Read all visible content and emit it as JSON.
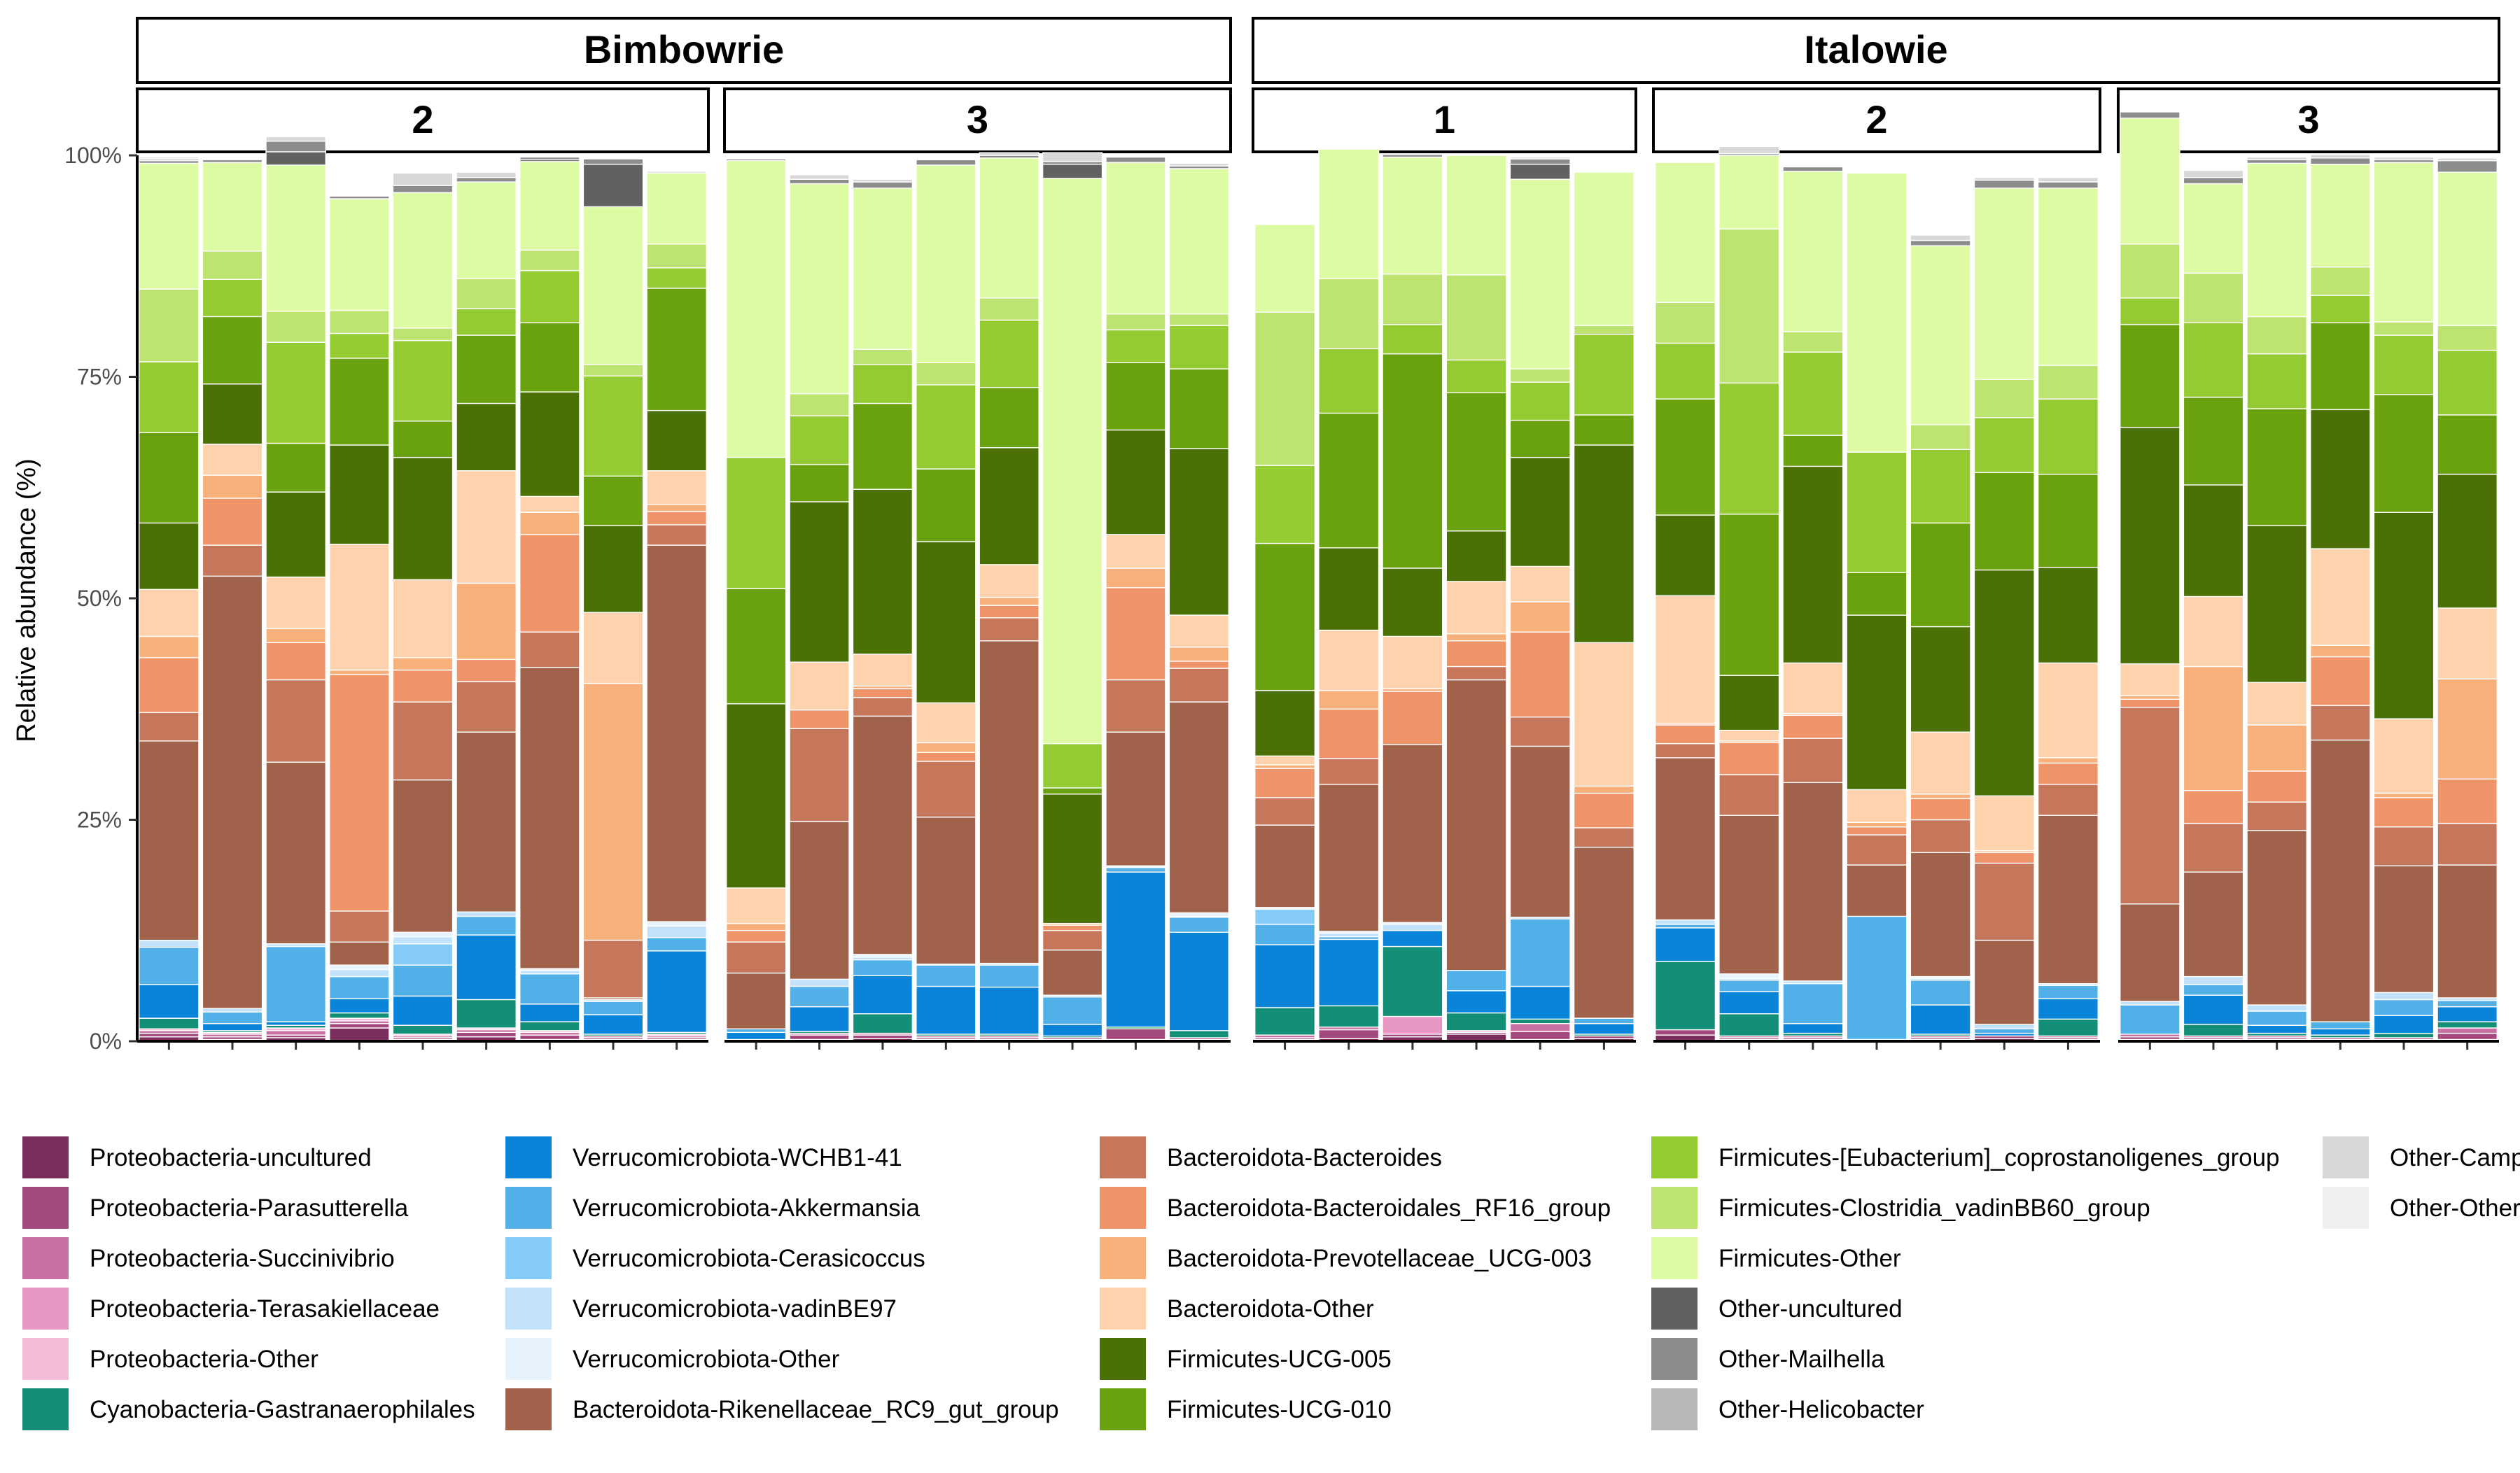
{
  "chart_data": {
    "type": "bar",
    "stacked": true,
    "ylabel": "Relative abundance (%)",
    "xlabel": "",
    "ylim": [
      0,
      100
    ],
    "yticks": [
      "0%",
      "25%",
      "50%",
      "75%",
      "100%"
    ],
    "grid": false,
    "legend_position": "bottom",
    "groups": [
      {
        "label": "Bimbowrie",
        "subpanels": [
          "2",
          "3"
        ]
      },
      {
        "label": "Italowie",
        "subpanels": [
          "1",
          "2",
          "3"
        ]
      }
    ],
    "series": [
      {
        "name": "Proteobacteria-uncultured",
        "color": "#7b2d5c"
      },
      {
        "name": "Proteobacteria-Parasutterella",
        "color": "#a3497e"
      },
      {
        "name": "Proteobacteria-Succinivibrio",
        "color": "#c96fa4"
      },
      {
        "name": "Proteobacteria-Terasakiellaceae",
        "color": "#e897c4"
      },
      {
        "name": "Proteobacteria-Other",
        "color": "#f2bcd8"
      },
      {
        "name": "Cyanobacteria-Gastranaerophilales",
        "color": "#148f77"
      },
      {
        "name": "Verrucomicrobiota-WCHB1-41",
        "color": "#0a84d8"
      },
      {
        "name": "Verrucomicrobiota-Akkermansia",
        "color": "#52b0e8"
      },
      {
        "name": "Verrucomicrobiota-Cerasicoccus",
        "color": "#84cbf7"
      },
      {
        "name": "Verrucomicrobiota-vadinBE97",
        "color": "#c2e2fb"
      },
      {
        "name": "Verrucomicrobiota-Other",
        "color": "#e6f3fd"
      },
      {
        "name": "Bacteroidota-Rikenellaceae_RC9_gut_group",
        "color": "#a0624b"
      },
      {
        "name": "Bacteroidota-Bacteroides",
        "color": "#c6765a"
      },
      {
        "name": "Bacteroidota-Bacteroidales_RF16_group",
        "color": "#ef9468"
      },
      {
        "name": "Bacteroidota-Prevotellaceae_UCG-003",
        "color": "#f8b07a"
      },
      {
        "name": "Bacteroidota-Other",
        "color": "#fdd2ad"
      },
      {
        "name": "Firmicutes-UCG-005",
        "color": "#4b7106"
      },
      {
        "name": "Firmicutes-UCG-010",
        "color": "#6aa10e"
      },
      {
        "name": "Firmicutes-[Eubacterium]_coprostanoligenes_group",
        "color": "#94ca32"
      },
      {
        "name": "Firmicutes-Clostridia_vadinBB60_group",
        "color": "#bde470"
      },
      {
        "name": "Firmicutes-Other",
        "color": "#ddfba2"
      },
      {
        "name": "Other-uncultured",
        "color": "#616161"
      },
      {
        "name": "Other-Mailhella",
        "color": "#8c8c8c"
      },
      {
        "name": "Other-Helicobacter",
        "color": "#b7b7b7"
      },
      {
        "name": "Other-Camp",
        "color": "#d8d8d8"
      },
      {
        "name": "Other-Other",
        "color": "#f0f0f0"
      }
    ],
    "panels": [
      {
        "group": "Bimbowrie",
        "label": "2",
        "bars": [
          [
            0.5,
            0.4,
            0.3,
            0,
            0.2,
            1.2,
            3.8,
            4.2,
            0,
            0.8,
            0,
            22.5,
            3.2,
            6.2,
            2.4,
            5.3,
            7.5,
            10.2,
            8,
            8.2,
            14.2,
            0,
            0.3,
            0.2,
            0.2,
            0
          ],
          [
            0.2,
            0.3,
            0.3,
            0,
            0.2,
            0.2,
            0.8,
            1.3,
            0,
            0.4,
            0,
            48.8,
            3.5,
            5.3,
            2.6,
            3.5,
            6.8,
            7.6,
            4.2,
            3.2,
            10,
            0,
            0.3,
            0,
            0,
            0.2
          ],
          [
            0.4,
            0.3,
            0.5,
            0,
            0.3,
            0.3,
            0.4,
            8.5,
            0,
            0.3,
            0,
            20.5,
            9.3,
            4.2,
            1.6,
            5.8,
            9.6,
            5.5,
            11.4,
            3.5,
            16.5,
            1.5,
            1.2,
            0,
            0.5,
            0
          ],
          [
            1.5,
            0.5,
            0.3,
            0,
            0.3,
            0.6,
            1.6,
            2.5,
            0,
            0.8,
            0.5,
            2.6,
            3.5,
            26.7,
            0.5,
            14.2,
            11.2,
            9.8,
            2.8,
            2.6,
            12.6,
            0,
            0.3,
            0,
            0,
            0
          ],
          [
            0.2,
            0.2,
            0.2,
            0,
            0.2,
            1,
            3.3,
            3.5,
            2.4,
            0.8,
            0.5,
            17.2,
            8.8,
            3.6,
            1.4,
            8.8,
            13.8,
            4.1,
            9.1,
            1.4,
            15.3,
            0,
            0.8,
            0,
            1.4,
            0
          ],
          [
            0.5,
            0.5,
            0.3,
            0,
            0.2,
            3.2,
            7.3,
            2.1,
            0,
            0.5,
            0,
            20.3,
            5.7,
            2.5,
            8.6,
            12.7,
            7.6,
            7.7,
            3,
            3.4,
            10.9,
            0,
            0.5,
            0,
            0.6,
            0
          ],
          [
            0.2,
            0.5,
            0.3,
            0,
            0.2,
            1,
            2,
            3.4,
            0,
            0.4,
            0.2,
            34,
            4,
            11,
            2.5,
            1.8,
            11.8,
            7.8,
            5.9,
            2.3,
            10,
            0.2,
            0.3,
            0,
            0,
            0
          ],
          [
            0.2,
            0.2,
            0.2,
            0,
            0,
            0.2,
            2.2,
            1.5,
            0,
            0.2,
            0,
            0.2,
            6.5,
            0,
            29,
            8,
            9.8,
            5.6,
            11.3,
            1.3,
            17.8,
            4.8,
            0.6,
            0,
            0,
            0
          ],
          [
            0.2,
            0.2,
            0.2,
            0,
            0.2,
            0.2,
            9.2,
            1.5,
            0,
            1.3,
            0.5,
            42.5,
            2.3,
            1.5,
            0.8,
            3.8,
            6.8,
            13.8,
            2.3,
            2.7,
            8,
            0,
            0,
            0,
            0.2,
            0
          ]
        ]
      },
      {
        "group": "Bimbowrie",
        "label": "3",
        "bars": [
          [
            0.2,
            0,
            0,
            0,
            0,
            0,
            0.8,
            0.4,
            0,
            0,
            0,
            6.3,
            3.5,
            1.3,
            0.8,
            4,
            20.8,
            13,
            14.8,
            0,
            33.5,
            0,
            0.2,
            0,
            0,
            0
          ],
          [
            0.2,
            0.5,
            0.2,
            0,
            0,
            0.2,
            2.8,
            2.3,
            0,
            0.8,
            0,
            17.8,
            10.5,
            2.1,
            0,
            5.4,
            18.1,
            4.2,
            5.5,
            2.5,
            23.7,
            0,
            0.5,
            0,
            0.5,
            0
          ],
          [
            0.3,
            0.4,
            0.2,
            0,
            0,
            2.2,
            4.3,
            1.8,
            0,
            0.3,
            0.3,
            26.9,
            2.1,
            1,
            0.3,
            3.6,
            18.6,
            9.7,
            4.4,
            1.7,
            18.2,
            0,
            0.7,
            0,
            0.3,
            0
          ],
          [
            0.2,
            0.2,
            0.2,
            0,
            0,
            0.2,
            5.4,
            2.4,
            0,
            0.1,
            0,
            16.6,
            6.3,
            1,
            1.1,
            4.5,
            18.2,
            8.2,
            9.5,
            2.5,
            22.3,
            0,
            0.6,
            0,
            0,
            0
          ],
          [
            0.2,
            0.2,
            0.2,
            0,
            0,
            0.2,
            5.3,
            2.5,
            0,
            0.2,
            0,
            36.4,
            2.6,
            1.4,
            0.9,
            3.7,
            13.2,
            6.8,
            7.6,
            2.5,
            15.8,
            0,
            0.3,
            0,
            0.3,
            0
          ],
          [
            0.2,
            0.2,
            0,
            0,
            0,
            0.2,
            1.3,
            3.1,
            0,
            0.2,
            0,
            5.1,
            2.2,
            0.6,
            0.2,
            0,
            14.6,
            0.7,
            5,
            0,
            63.8,
            1.6,
            0.3,
            0,
            1,
            0
          ],
          [
            0.2,
            1.2,
            0,
            0,
            0,
            0.2,
            17.5,
            0.5,
            0,
            0,
            0.2,
            15.1,
            5.9,
            10.4,
            2.2,
            3.8,
            11.8,
            7.6,
            3.7,
            1.8,
            17.1,
            0,
            0.6,
            0,
            0,
            0
          ],
          [
            0.2,
            0.2,
            0,
            0,
            0,
            0.8,
            11.1,
            1.7,
            0,
            0.1,
            0.4,
            23.8,
            3.8,
            0.8,
            1.6,
            3.6,
            18.8,
            9,
            4.9,
            1.3,
            16.4,
            0,
            0.3,
            0,
            0.3,
            0
          ]
        ]
      },
      {
        "group": "Italowie",
        "label": "1",
        "bars": [
          [
            0.2,
            0.2,
            0.3,
            0,
            0,
            3.1,
            7.1,
            2.3,
            1.7,
            0,
            0.2,
            9.3,
            3.1,
            3.3,
            0.4,
            1,
            7.4,
            16.6,
            8.8,
            17.3,
            9.9,
            0,
            0,
            0,
            0,
            0
          ],
          [
            0.3,
            1,
            0.3,
            0,
            0,
            2.4,
            7.5,
            0.3,
            0,
            0.4,
            0.2,
            16.6,
            2.9,
            5.6,
            2.1,
            6.8,
            9.3,
            15.2,
            7.3,
            7.9,
            14.6,
            0,
            0,
            0,
            0,
            0
          ],
          [
            0.5,
            0.3,
            0,
            2,
            0,
            7.9,
            1.8,
            0,
            0,
            0.7,
            0.2,
            20.1,
            0,
            6,
            0.3,
            5.9,
            7.7,
            24.2,
            3.3,
            5.7,
            13.2,
            0,
            0.3,
            0,
            0,
            0
          ],
          [
            0.8,
            0.2,
            0,
            0,
            0.2,
            2,
            2.5,
            2.3,
            0,
            0,
            0,
            32.8,
            1.5,
            2.9,
            0.8,
            5.9,
            5.7,
            15.6,
            3.7,
            9.6,
            13.5,
            0,
            0,
            0,
            0,
            0
          ],
          [
            0.2,
            0.9,
            0.9,
            0,
            0,
            0.5,
            3.7,
            7.6,
            0,
            0.2,
            0,
            19.3,
            3.3,
            9.6,
            3.4,
            4,
            12.3,
            4.2,
            4.3,
            1.5,
            21.4,
            1.7,
            0.6,
            0,
            0.2,
            0
          ],
          [
            0.3,
            0.3,
            0,
            0,
            0,
            0.2,
            1.2,
            0.6,
            0,
            0,
            0,
            19.3,
            2.2,
            3.9,
            0.8,
            16.2,
            22.3,
            3.4,
            9.1,
            1,
            17.3,
            0,
            0,
            0,
            0,
            0
          ]
        ]
      },
      {
        "group": "Italowie",
        "label": "2",
        "bars": [
          [
            0.7,
            0.6,
            0,
            0,
            0,
            7.7,
            3.8,
            0.4,
            0,
            0.5,
            0,
            18.3,
            1.6,
            2.1,
            0.2,
            14.4,
            9.1,
            13.1,
            6.3,
            4.6,
            15.8,
            0,
            0,
            0,
            0,
            0
          ],
          [
            0.2,
            0.2,
            0.2,
            0,
            0,
            2.5,
            2.5,
            1.3,
            0,
            0.2,
            0.5,
            17.9,
            4.6,
            3.6,
            0.2,
            1.2,
            6.2,
            18.2,
            14.8,
            17.4,
            8.3,
            0,
            0.2,
            0,
            0.8,
            0
          ],
          [
            0.2,
            0.2,
            0.2,
            0,
            0,
            0.3,
            1.1,
            4.5,
            0,
            0.3,
            0,
            22.4,
            5,
            2.6,
            0.2,
            5.7,
            22.2,
            3.5,
            9.4,
            2.3,
            18.1,
            0,
            0.5,
            0,
            0,
            0
          ],
          [
            0.2,
            0,
            0,
            0,
            0,
            0,
            0,
            13.9,
            0,
            0,
            0,
            5.8,
            3.4,
            0.9,
            0.5,
            3.7,
            19.7,
            4.8,
            13.6,
            0,
            31.5,
            0,
            0,
            0,
            0,
            0
          ],
          [
            0.2,
            0.2,
            0.2,
            0,
            0,
            0.2,
            3.3,
            2.8,
            0,
            0.2,
            0.2,
            14,
            3.7,
            2.4,
            0.5,
            7,
            11.9,
            11.7,
            8.3,
            2.8,
            20.2,
            0,
            0.6,
            0,
            0.6,
            0
          ],
          [
            0.3,
            0.3,
            0,
            0,
            0,
            0,
            0.3,
            0.5,
            0,
            0.5,
            0,
            9.5,
            8.7,
            1.2,
            0.2,
            6.2,
            25.5,
            11,
            6.2,
            4.3,
            21.6,
            0,
            0.9,
            0,
            0.3,
            0
          ],
          [
            0.2,
            0.2,
            0.2,
            0,
            0,
            1.9,
            2.3,
            1.5,
            0,
            0.2,
            0,
            19,
            3.5,
            2.4,
            0.6,
            10.7,
            10.8,
            10.5,
            8.5,
            3.8,
            20,
            0,
            0.7,
            0,
            0.5,
            0
          ]
        ]
      },
      {
        "group": "Italowie",
        "label": "3",
        "bars": [
          [
            0.2,
            0.3,
            0.3,
            0,
            0,
            0,
            0,
            3.3,
            0,
            0.4,
            0,
            11,
            22.2,
            0.9,
            0.4,
            3.6,
            26.7,
            11.6,
            3,
            6.1,
            14.2,
            0,
            0.7,
            0,
            0,
            0
          ],
          [
            0.2,
            0.2,
            0.2,
            0,
            0,
            1.3,
            3.3,
            1.2,
            0,
            0.9,
            0,
            11.8,
            5.5,
            3.7,
            14,
            7.9,
            12.6,
            9.9,
            8.4,
            5.6,
            10.1,
            0,
            0.7,
            0,
            0.8,
            0
          ],
          [
            0.2,
            0.2,
            0.2,
            0,
            0,
            0.3,
            0.9,
            1.6,
            0,
            0.7,
            0,
            19.7,
            3.2,
            3.5,
            5.2,
            4.8,
            17.7,
            13.2,
            6.2,
            4.2,
            17.3,
            0,
            0.4,
            0,
            0.3,
            0
          ],
          [
            0.2,
            0.2,
            0,
            0,
            0,
            0.3,
            0.7,
            0.8,
            0,
            0,
            0,
            31.8,
            3.9,
            5.5,
            1.3,
            10.9,
            15.7,
            9.8,
            3.1,
            3.2,
            11.6,
            0,
            0.7,
            0,
            0.4,
            0
          ],
          [
            0.2,
            0.2,
            0,
            0,
            0,
            0.5,
            2,
            1.8,
            0,
            0.8,
            0,
            14.3,
            4.4,
            3.3,
            0.5,
            8.4,
            23.3,
            13.3,
            6.7,
            1.5,
            18,
            0,
            0.3,
            0,
            0.3,
            0
          ],
          [
            0.2,
            0.7,
            0.6,
            0,
            0,
            0.7,
            1.7,
            0.7,
            0,
            0.3,
            0,
            15,
            4.7,
            5,
            11.3,
            8,
            15.1,
            6.7,
            7.3,
            2.8,
            17.3,
            0,
            1.3,
            0,
            0.3,
            0
          ]
        ]
      }
    ]
  }
}
